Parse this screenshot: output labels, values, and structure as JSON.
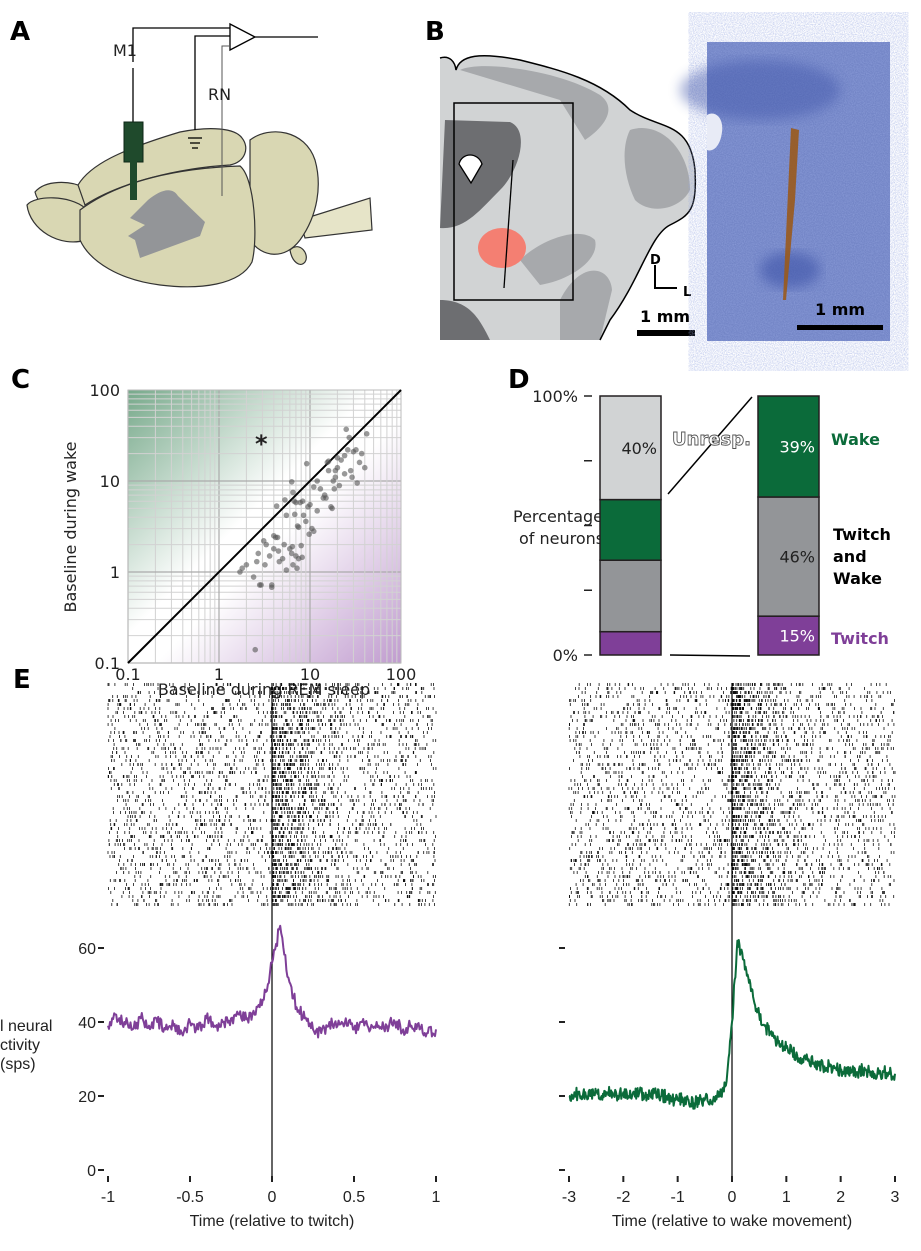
{
  "colors": {
    "wake": "#0b6b3a",
    "twitch": "#7f3f98",
    "twitch_and_wake": "#939598",
    "unresponsive": "#d1d3d4",
    "lesion": "#f47f72",
    "histology": "#4a5fb0"
  },
  "panel_a": {
    "label": "A",
    "electrode_label": "M1",
    "reference_label": "RN",
    "icons": [
      "brain-diagram",
      "electrode",
      "amplifier",
      "ground"
    ]
  },
  "panel_b": {
    "label": "B",
    "orientation_dorsal": "D",
    "orientation_lateral": "L",
    "scale_bar_label": "1 mm",
    "histology_scale_bar_label": "1 mm"
  },
  "panel_e": {
    "label": "E"
  },
  "chart_data": [
    {
      "panel": "C",
      "label": "C",
      "type": "scatter",
      "xlabel": "Baseline during REM sleep",
      "ylabel": "Baseline during wake",
      "xscale": "log",
      "yscale": "log",
      "xlim": [
        0.1,
        100
      ],
      "ylim": [
        0.1,
        100
      ],
      "xticks": [
        "0.1",
        "1",
        "10",
        "100"
      ],
      "yticks": [
        "0.1",
        "1",
        "10",
        "100"
      ],
      "grid": true,
      "unity_line": true,
      "annotation": "*",
      "points": [
        [
          2.5,
          0.14
        ],
        [
          1.7,
          1.0
        ],
        [
          1.8,
          1.1
        ],
        [
          2.0,
          1.2
        ],
        [
          2.4,
          0.88
        ],
        [
          2.8,
          0.72
        ],
        [
          2.9,
          0.72
        ],
        [
          3.8,
          0.72
        ],
        [
          3.8,
          0.68
        ],
        [
          2.6,
          1.3
        ],
        [
          2.7,
          1.6
        ],
        [
          3.2,
          1.2
        ],
        [
          3.1,
          2.2
        ],
        [
          3.3,
          2.0
        ],
        [
          3.6,
          1.5
        ],
        [
          4.0,
          2.5
        ],
        [
          4.2,
          2.4
        ],
        [
          4.4,
          2.4
        ],
        [
          4.0,
          1.8
        ],
        [
          4.5,
          1.7
        ],
        [
          4.6,
          1.3
        ],
        [
          5.0,
          1.4
        ],
        [
          5.5,
          1.05
        ],
        [
          5.2,
          2.0
        ],
        [
          6.0,
          1.8
        ],
        [
          6.4,
          1.9
        ],
        [
          6.5,
          1.2
        ],
        [
          7.0,
          1.5
        ],
        [
          7.5,
          1.4
        ],
        [
          7.2,
          1.1
        ],
        [
          8.0,
          1.95
        ],
        [
          8.2,
          1.45
        ],
        [
          6.3,
          1.6
        ],
        [
          4.3,
          5.3
        ],
        [
          5.3,
          6.2
        ],
        [
          5.5,
          4.2
        ],
        [
          6.3,
          9.8
        ],
        [
          6.5,
          7.5
        ],
        [
          6.7,
          6.0
        ],
        [
          7.0,
          5.8
        ],
        [
          6.8,
          4.3
        ],
        [
          7.3,
          3.2
        ],
        [
          7.5,
          3.1
        ],
        [
          7.8,
          5.8
        ],
        [
          8.3,
          6.0
        ],
        [
          8.5,
          4.2
        ],
        [
          9.0,
          3.6
        ],
        [
          9.5,
          5.2
        ],
        [
          9.8,
          2.6
        ],
        [
          10,
          5.5
        ],
        [
          10.5,
          3.0
        ],
        [
          11,
          2.8
        ],
        [
          9.2,
          15.5
        ],
        [
          11,
          8.6
        ],
        [
          12,
          4.7
        ],
        [
          13,
          8.2
        ],
        [
          14,
          6.5
        ],
        [
          14.5,
          7.0
        ],
        [
          15,
          6.5
        ],
        [
          15.5,
          16
        ],
        [
          16,
          13
        ],
        [
          17,
          5.2
        ],
        [
          17.5,
          5.0
        ],
        [
          18,
          10
        ],
        [
          18.5,
          8.2
        ],
        [
          19,
          13
        ],
        [
          20,
          14
        ],
        [
          20,
          18
        ],
        [
          22,
          17
        ],
        [
          24,
          12
        ],
        [
          24,
          19
        ],
        [
          25,
          37
        ],
        [
          26,
          22
        ],
        [
          27,
          30
        ],
        [
          28,
          13
        ],
        [
          29,
          11
        ],
        [
          30,
          21
        ],
        [
          32,
          22
        ],
        [
          33,
          9.5
        ],
        [
          35,
          16
        ],
        [
          37,
          20
        ],
        [
          40,
          14
        ],
        [
          42,
          33
        ],
        [
          19,
          11
        ],
        [
          16,
          16.5
        ],
        [
          21,
          8.9
        ],
        [
          12,
          10
        ]
      ]
    },
    {
      "panel": "D",
      "label": "D",
      "type": "bar",
      "stacked": true,
      "ylabel": "Percentage of neurons",
      "yticks": [
        "0%",
        "100%"
      ],
      "left_bar": [
        {
          "name": "Twitch",
          "value": 9,
          "color": "#7f3f98"
        },
        {
          "name": "Twitch and Wake",
          "value": 27.6,
          "color": "#939598"
        },
        {
          "name": "Wake",
          "value": 23.4,
          "color": "#0b6b3a"
        },
        {
          "name": "Unresp.",
          "value": 40,
          "color": "#d1d3d4",
          "data_label": "40%"
        }
      ],
      "right_bar": [
        {
          "name": "Twitch",
          "value": 15,
          "color": "#7f3f98",
          "data_label": "15%"
        },
        {
          "name": "Twitch and Wake",
          "value": 46,
          "color": "#939598",
          "data_label": "46%"
        },
        {
          "name": "Wake",
          "value": 39,
          "color": "#0b6b3a",
          "data_label": "39%"
        }
      ],
      "unresp_label": "Unresp.",
      "legend": {
        "wake": "Wake",
        "twitch_and_wake_1": "Twitch",
        "twitch_and_wake_2": "and",
        "twitch_and_wake_3": "Wake",
        "twitch": "Twitch"
      }
    },
    {
      "panel": "E-left",
      "type": "line",
      "raster_above": true,
      "xlabel": "Time (relative to twitch)",
      "ylabel_lines": [
        "l neural",
        "ctivity",
        "(sps)"
      ],
      "xlim": [
        -1,
        1
      ],
      "ylim": [
        0,
        70
      ],
      "xticks": [
        "-1",
        "-0.5",
        "0",
        "0.5",
        "1"
      ],
      "yticks": [
        "0",
        "20",
        "40",
        "60"
      ],
      "color": "#7f3f98",
      "x": [
        -1,
        -0.95,
        -0.9,
        -0.85,
        -0.8,
        -0.75,
        -0.7,
        -0.65,
        -0.6,
        -0.55,
        -0.5,
        -0.45,
        -0.4,
        -0.35,
        -0.3,
        -0.25,
        -0.2,
        -0.15,
        -0.1,
        -0.05,
        0,
        0.05,
        0.1,
        0.15,
        0.2,
        0.25,
        0.3,
        0.35,
        0.4,
        0.45,
        0.5,
        0.55,
        0.6,
        0.65,
        0.7,
        0.75,
        0.8,
        0.85,
        0.9,
        0.95,
        1
      ],
      "y": [
        39,
        42,
        40,
        38,
        41,
        39,
        40,
        38,
        39,
        37,
        40,
        38,
        41,
        39,
        40,
        41,
        42,
        41,
        42,
        46,
        56,
        66,
        52,
        44,
        41,
        38,
        37,
        40,
        39,
        41,
        38,
        40,
        38,
        39,
        39,
        40,
        38,
        39,
        38,
        37,
        38
      ]
    },
    {
      "panel": "E-right",
      "type": "line",
      "raster_above": true,
      "xlabel": "Time (relative to wake movement)",
      "xlim": [
        -3,
        3
      ],
      "ylim": [
        0,
        70
      ],
      "xticks": [
        "-3",
        "-2",
        "-1",
        "0",
        "1",
        "2",
        "3"
      ],
      "color": "#0b6b3a",
      "x": [
        -3,
        -2.9,
        -2.8,
        -2.7,
        -2.6,
        -2.5,
        -2.4,
        -2.3,
        -2.2,
        -2.1,
        -2,
        -1.9,
        -1.8,
        -1.7,
        -1.6,
        -1.5,
        -1.4,
        -1.3,
        -1.2,
        -1.1,
        -1,
        -0.9,
        -0.8,
        -0.7,
        -0.6,
        -0.5,
        -0.4,
        -0.3,
        -0.2,
        -0.1,
        0,
        0.1,
        0.2,
        0.3,
        0.4,
        0.5,
        0.6,
        0.7,
        0.8,
        0.9,
        1,
        1.1,
        1.2,
        1.3,
        1.4,
        1.5,
        1.6,
        1.7,
        1.8,
        1.9,
        2,
        2.1,
        2.2,
        2.3,
        2.4,
        2.5,
        2.6,
        2.7,
        2.8,
        2.9,
        3
      ],
      "y": [
        20,
        21,
        20,
        21,
        20,
        21,
        20,
        21,
        21,
        20,
        21,
        20,
        21,
        21,
        20,
        20,
        21,
        20,
        20,
        19,
        19,
        19,
        19,
        18,
        19,
        19,
        19,
        20,
        21,
        24,
        40,
        62,
        57,
        52,
        46,
        42,
        39,
        37,
        35,
        34,
        33,
        32,
        31,
        30,
        29.5,
        29,
        28.5,
        28,
        28,
        27.5,
        27,
        27,
        27,
        26.5,
        27,
        26.5,
        26.5,
        26,
        26.5,
        26,
        26
      ]
    }
  ]
}
